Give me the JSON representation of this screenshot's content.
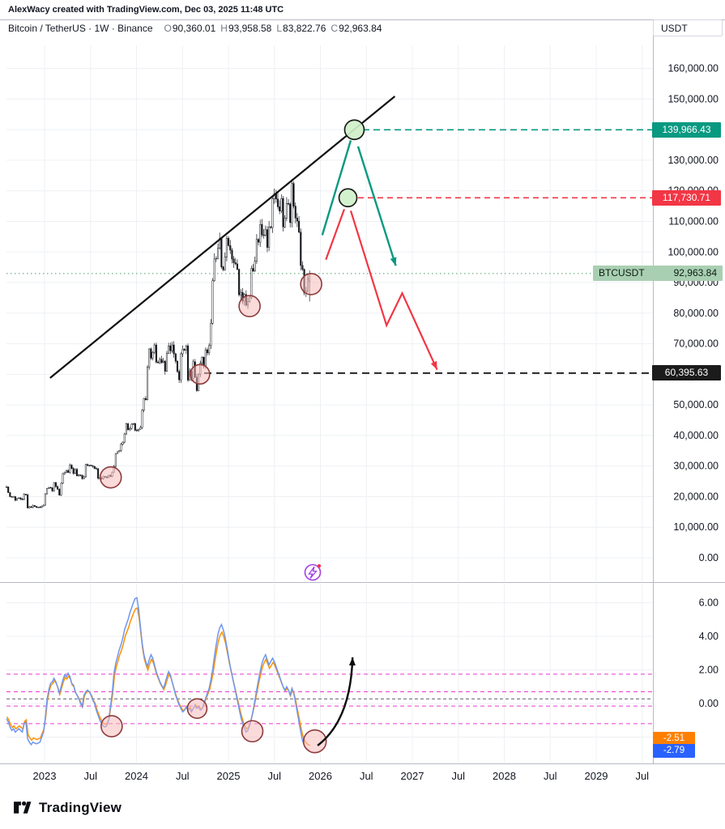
{
  "attribution": "AlexWacy created with TradingView.com, Dec 03, 2025 11:48 UTC",
  "header": {
    "symbol_line": "Bitcoin / TetherUS · 1W · Binance",
    "ohlc": [
      {
        "label": "O",
        "value": "90,360.01"
      },
      {
        "label": "H",
        "value": "93,958.58"
      },
      {
        "label": "L",
        "value": "83,822.76"
      },
      {
        "label": "C",
        "value": "92,963.84"
      }
    ],
    "currency_button": "USDT"
  },
  "footer": {
    "brand": "TradingView"
  },
  "colors": {
    "teal": "#089981",
    "red": "#f23645",
    "black_label": "#1b1b1b",
    "last_label_bg": "#a9cfb2",
    "candle": "#16181d",
    "grid": "#eef0f4",
    "panel_border": "#b7bac4",
    "axis_text": "#131722",
    "osc_orange": "#ff9100",
    "osc_blue": "#6f96ef",
    "osc_orange_label_bg": "#ff8000",
    "osc_blue_label_bg": "#2962ff",
    "magenta": "#ea3bd0",
    "circle_pink_fill": "rgba(247,188,188,0.55)",
    "circle_pink_stroke": "#8d3b3b",
    "circle_green_fill": "rgba(207,240,201,0.92)",
    "circle_green_stroke": "#1b1b1b",
    "trendline": "#101010",
    "purple": "#a43ee0"
  },
  "chart_data": [
    {
      "type": "candlestick",
      "symbol": "BTCUSDT",
      "exchange": "Binance",
      "timeframe": "1W",
      "week_t0": 2022.586,
      "week_dt": 0.019165,
      "ylim": [
        0,
        165000
      ],
      "closes_k": [
        23.2,
        21.3,
        20.0,
        19.8,
        20.0,
        18.8,
        19.4,
        19.6,
        19.2,
        19.1,
        20.8,
        20.6,
        16.3,
        16.7,
        16.5,
        17.1,
        16.8,
        16.5,
        16.6,
        16.5,
        16.9,
        17.2,
        20.9,
        22.7,
        23.0,
        22.9,
        21.9,
        24.6,
        23.3,
        22.4,
        20.5,
        24.4,
        27.5,
        28.0,
        28.5,
        27.9,
        30.3,
        29.2,
        27.6,
        28.9,
        26.8,
        27.1,
        26.9,
        25.9,
        26.5,
        30.5,
        30.2,
        30.3,
        30.1,
        29.9,
        29.2,
        29.1,
        26.0,
        26.1,
        25.9,
        26.6,
        26.5,
        26.2,
        27.0,
        26.6,
        28.0,
        29.9,
        34.1,
        34.7,
        35.1,
        37.1,
        37.8,
        40.5,
        43.8,
        41.9,
        42.3,
        43.7,
        43.9,
        41.7,
        41.6,
        42.0,
        42.6,
        48.3,
        52.1,
        51.7,
        62.4,
        68.3,
        65.3,
        67.2,
        69.6,
        64.0,
        63.8,
        64.9,
        63.9,
        64.3,
        61.0,
        66.9,
        69.3,
        67.7,
        69.6,
        66.7,
        64.3,
        60.9,
        58.2,
        66.7,
        68.2,
        67.9,
        69.3,
        58.1,
        60.9,
        58.7,
        64.1,
        59.1,
        54.7,
        60.0,
        63.6,
        65.6,
        62.8,
        68.0,
        67.0,
        69.4,
        76.7,
        90.6,
        97.7,
        97.9,
        101.2,
        104.4,
        95.1,
        94.2,
        98.4,
        104.5,
        102.1,
        100.6,
        97.7,
        96.5,
        96.1,
        94.3,
        86.0,
        86.8,
        83.9,
        86.1,
        82.6,
        83.8,
        85.2,
        94.6,
        93.8,
        97.0,
        104.1,
        103.2,
        109.0,
        105.6,
        105.5,
        107.3,
        101.5,
        108.2,
        108.0,
        117.4,
        119.0,
        117.3,
        114.8,
        113.4,
        117.5,
        108.2,
        111.1,
        115.9,
        115.7,
        109.6,
        122.4,
        115.0,
        111.1,
        110.1,
        106.5,
        95.6,
        94.3,
        86.6,
        87.3,
        91.3,
        92.96
      ],
      "last_ohlc": {
        "open": 90360.01,
        "high": 93958.58,
        "low": 83822.76,
        "close": 92963.84
      },
      "y_ticks": [
        {
          "text": "160,000.00",
          "value": 160000
        },
        {
          "text": "150,000.00",
          "value": 150000
        },
        {
          "text": "130,000.00",
          "value": 130000
        },
        {
          "text": "120,000.00",
          "value": 120000
        },
        {
          "text": "110,000.00",
          "value": 110000
        },
        {
          "text": "100,000.00",
          "value": 100000
        },
        {
          "text": "90,000.00",
          "value": 90000
        },
        {
          "text": "80,000.00",
          "value": 80000
        },
        {
          "text": "70,000.00",
          "value": 70000
        },
        {
          "text": "50,000.00",
          "value": 50000
        },
        {
          "text": "40,000.00",
          "value": 40000
        },
        {
          "text": "30,000.00",
          "value": 30000
        },
        {
          "text": "20,000.00",
          "value": 20000
        },
        {
          "text": "10,000.00",
          "value": 10000
        },
        {
          "text": "0.00",
          "value": 0
        }
      ],
      "x_ticks": [
        {
          "label": "2023",
          "t": 2023
        },
        {
          "label": "Jul",
          "t": 2023.5
        },
        {
          "label": "2024",
          "t": 2024
        },
        {
          "label": "Jul",
          "t": 2024.5
        },
        {
          "label": "2025",
          "t": 2025
        },
        {
          "label": "Jul",
          "t": 2025.5
        },
        {
          "label": "2026",
          "t": 2026
        },
        {
          "label": "Jul",
          "t": 2026.5
        },
        {
          "label": "2027",
          "t": 2027
        },
        {
          "label": "Jul",
          "t": 2027.5
        },
        {
          "label": "2028",
          "t": 2028
        },
        {
          "label": "Jul",
          "t": 2028.5
        },
        {
          "label": "2029",
          "t": 2029
        },
        {
          "label": "Jul",
          "t": 2029.5
        }
      ],
      "levels": {
        "target_high": {
          "text": "139,966.43",
          "value": 139966.43
        },
        "target_mid": {
          "text": "117,730.71",
          "value": 117730.71
        },
        "target_low": {
          "text": "60,395.63",
          "value": 60395.63
        },
        "last": {
          "symbol": "BTCUSDT",
          "text": "92,963.84",
          "value": 92963.84
        }
      },
      "trendline": [
        [
          2023.06,
          58800
        ],
        [
          2026.81,
          150900
        ]
      ],
      "projections": {
        "teal_up": [
          [
            2026.02,
            105500
          ],
          [
            2026.33,
            136500
          ]
        ],
        "teal_down": [
          [
            2026.41,
            134500
          ],
          [
            2026.82,
            95500
          ]
        ],
        "red_up": [
          [
            2026.06,
            97500
          ],
          [
            2026.26,
            114000
          ]
        ],
        "red_down": [
          [
            2026.33,
            113500
          ],
          [
            2026.72,
            76000
          ],
          [
            2026.89,
            86500
          ],
          [
            2027.27,
            61500
          ]
        ]
      },
      "highlight_circles": [
        {
          "t": 2023.72,
          "p": 26300,
          "r": 13
        },
        {
          "t": 2024.69,
          "p": 60000,
          "r": 12
        },
        {
          "t": 2025.23,
          "p": 82300,
          "r": 13
        },
        {
          "t": 2025.9,
          "p": 89500,
          "r": 13
        }
      ],
      "target_circles": [
        {
          "t": 2026.37,
          "p": 139966,
          "r": 12
        },
        {
          "t": 2026.3,
          "p": 117730,
          "r": 11
        }
      ]
    },
    {
      "type": "line",
      "name": "momentum-oscillator",
      "ylim": [
        -3.6,
        7.2
      ],
      "values": [
        -0.9,
        -1.1,
        -1.4,
        -1.6,
        -1.5,
        -1.7,
        -1.6,
        -1.5,
        -1.6,
        -1.7,
        -1.2,
        -1.1,
        -2.1,
        -2.3,
        -2.45,
        -2.3,
        -2.35,
        -2.4,
        -2.35,
        -2.3,
        -2.0,
        -1.7,
        -0.9,
        0.2,
        0.8,
        1.2,
        1.3,
        1.5,
        1.3,
        1.0,
        0.6,
        1.0,
        1.4,
        1.7,
        1.6,
        1.8,
        1.6,
        1.2,
        1.1,
        0.7,
        0.5,
        0.3,
        0.0,
        -0.2,
        0.5,
        0.7,
        0.8,
        0.7,
        0.5,
        0.2,
        0.0,
        -0.4,
        -0.7,
        -1.0,
        -1.2,
        -1.35,
        -1.4,
        -1.3,
        -1.0,
        -0.2,
        0.6,
        1.8,
        2.4,
        2.8,
        3.2,
        3.5,
        3.9,
        4.4,
        4.7,
        5.0,
        5.4,
        5.7,
        6.0,
        6.25,
        6.3,
        5.6,
        4.6,
        3.6,
        2.9,
        2.5,
        2.2,
        2.6,
        2.9,
        2.7,
        2.3,
        1.9,
        1.6,
        1.3,
        1.1,
        0.9,
        1.2,
        1.6,
        1.9,
        1.7,
        1.3,
        0.9,
        0.5,
        0.2,
        -0.1,
        -0.3,
        -0.5,
        -0.4,
        -0.2,
        -0.4,
        -0.3,
        -0.5,
        -0.3,
        -0.1,
        -0.3,
        -0.2,
        -0.4,
        -0.3,
        0.0,
        0.3,
        0.6,
        0.9,
        1.4,
        2.0,
        2.8,
        3.5,
        4.1,
        4.5,
        4.7,
        4.4,
        4.0,
        3.4,
        2.8,
        2.2,
        1.7,
        1.2,
        0.7,
        0.2,
        -0.3,
        -0.8,
        -1.2,
        -1.5,
        -1.7,
        -1.6,
        -1.3,
        -0.9,
        -0.4,
        0.2,
        0.8,
        1.4,
        1.9,
        2.4,
        2.7,
        2.9,
        2.6,
        2.3,
        2.5,
        2.7,
        2.5,
        2.2,
        1.9,
        1.6,
        1.3,
        1.0,
        0.8,
        1.0,
        0.8,
        0.5,
        0.9,
        0.6,
        0.1,
        -0.5,
        -1.1,
        -1.7,
        -2.2,
        -2.5,
        -2.65,
        -2.75,
        -2.79
      ],
      "y_ticks": [
        {
          "text": "6.00",
          "value": 6
        },
        {
          "text": "4.00",
          "value": 4
        },
        {
          "text": "2.00",
          "value": 2
        },
        {
          "text": "0.00",
          "value": 0
        }
      ],
      "dashed_levels": [
        1.75,
        0.7,
        -0.15,
        -1.2
      ],
      "last_values": {
        "orange_text": "-2.51",
        "orange": -2.51,
        "blue_text": "-2.79",
        "blue": -2.79
      },
      "highlight_circles": [
        {
          "t": 2023.73,
          "v": -1.35,
          "r": 13
        },
        {
          "t": 2024.66,
          "v": -0.3,
          "r": 12
        },
        {
          "t": 2025.26,
          "v": -1.65,
          "r": 13
        },
        {
          "t": 2025.94,
          "v": -2.25,
          "r": 14
        }
      ],
      "arrow": {
        "from": [
          2025.97,
          -2.5
        ],
        "ctrl": [
          2026.33,
          -1.0
        ],
        "to": [
          2026.35,
          2.75
        ]
      }
    }
  ]
}
